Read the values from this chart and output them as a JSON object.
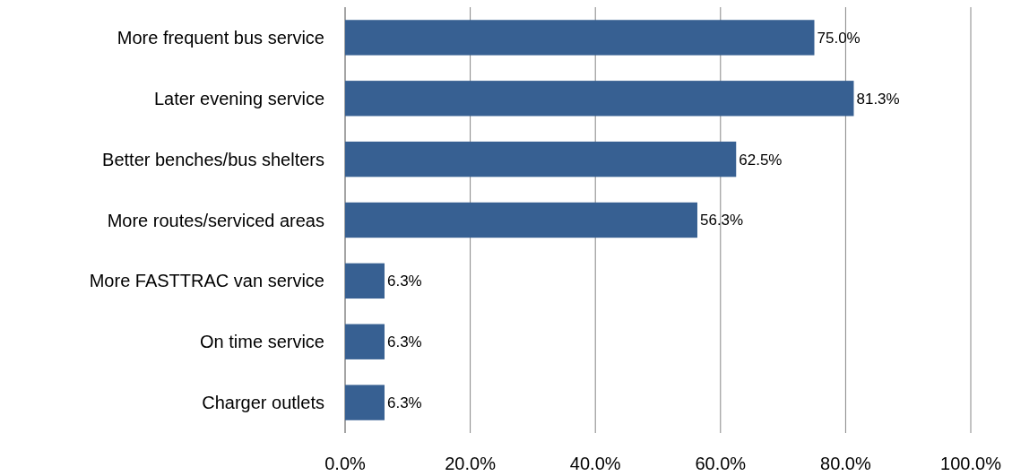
{
  "chart_data": {
    "type": "bar",
    "orientation": "horizontal",
    "categories": [
      "More frequent bus service",
      "Later evening service",
      "Better benches/bus shelters",
      "More routes/serviced areas",
      "More FASTTRAC van service",
      "On time service",
      "Charger outlets"
    ],
    "values": [
      75.0,
      81.3,
      62.5,
      56.3,
      6.3,
      6.3,
      6.3
    ],
    "value_labels": [
      "75.0%",
      "81.3%",
      "62.5%",
      "56.3%",
      "6.3%",
      "6.3%",
      "6.3%"
    ],
    "color": "#376092",
    "xlim": [
      0,
      100
    ],
    "xticks": [
      {
        "value": 0,
        "label": "0.0%"
      },
      {
        "value": 20,
        "label": "20.0%"
      },
      {
        "value": 40,
        "label": "40.0%"
      },
      {
        "value": 60,
        "label": "60.0%"
      },
      {
        "value": 80,
        "label": "80.0%"
      },
      {
        "value": 100,
        "label": "100.0%"
      }
    ],
    "grid": "x"
  }
}
